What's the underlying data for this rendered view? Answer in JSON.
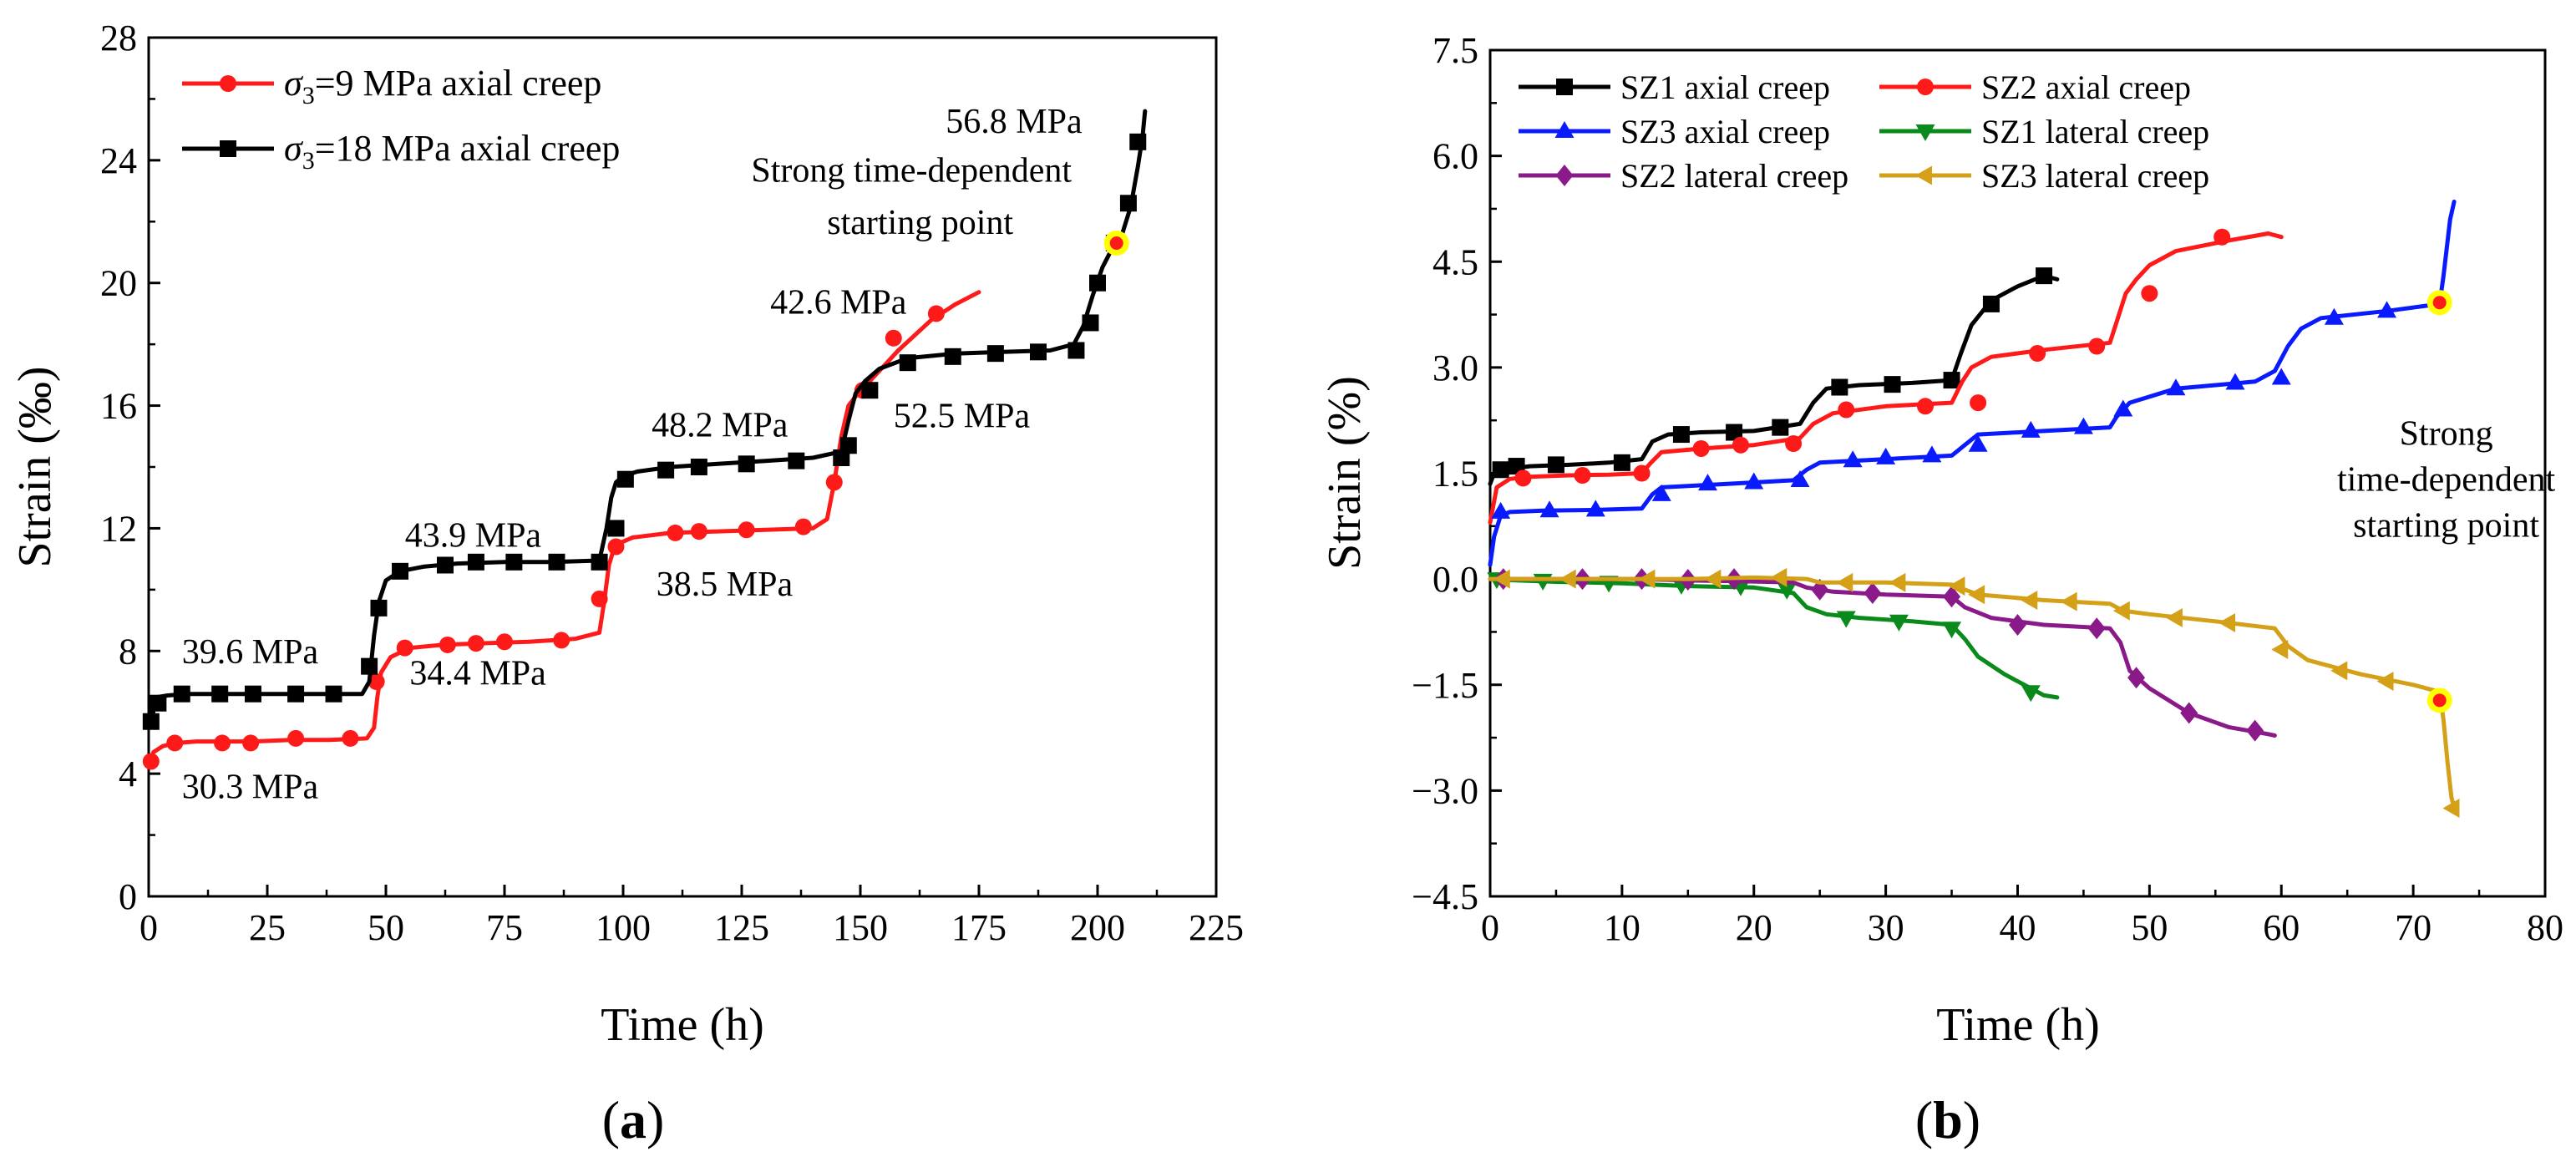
{
  "chart_data": [
    {
      "type": "line",
      "panel_label": "(a)",
      "xlabel": "Time  (h)",
      "ylabel": "Strain (‰)",
      "xlim": [
        0,
        225
      ],
      "ylim": [
        0,
        28
      ],
      "xticks": [
        "0",
        "25",
        "50",
        "75",
        "100",
        "125",
        "150",
        "175",
        "200",
        "225"
      ],
      "yticks": [
        "0",
        "4",
        "8",
        "12",
        "16",
        "20",
        "24",
        "28"
      ],
      "legend": [
        "σ3=9 MPa  axial creep",
        "σ3=18 MPa  axial creep"
      ],
      "series": [
        {
          "name": "σ3=9 MPa  axial creep",
          "color": "#ff1a1a",
          "marker": "circle",
          "x": [
            0,
            1,
            3,
            6,
            10,
            15,
            22,
            30,
            38,
            46,
            47.5,
            48.2,
            49,
            51,
            55,
            62,
            70,
            80,
            90,
            95,
            96,
            97,
            98,
            99,
            102,
            110,
            120,
            130,
            140,
            143,
            144.5,
            146,
            147.5,
            149,
            152,
            158,
            165,
            170,
            175
          ],
          "y": [
            4.3,
            4.7,
            4.9,
            5.0,
            5.05,
            5.05,
            5.05,
            5.1,
            5.1,
            5.15,
            5.5,
            6.5,
            7.3,
            7.8,
            8.1,
            8.2,
            8.25,
            8.3,
            8.4,
            8.6,
            9.6,
            10.8,
            11.3,
            11.5,
            11.7,
            11.85,
            11.9,
            11.95,
            12.0,
            12.3,
            13.5,
            15.0,
            16.0,
            16.3,
            16.8,
            17.8,
            18.8,
            19.3,
            19.7
          ],
          "markers_x": [
            0.5,
            5.5,
            15.5,
            21.5,
            31,
            42.5,
            48,
            54,
            63,
            69,
            75,
            87,
            95,
            98.5,
            111,
            116,
            126,
            138,
            144.5,
            150.5,
            157,
            166
          ],
          "markers_y": [
            4.4,
            5.0,
            5.0,
            5.0,
            5.15,
            5.15,
            7.0,
            8.1,
            8.2,
            8.25,
            8.3,
            8.35,
            9.7,
            11.4,
            11.85,
            11.9,
            11.95,
            12.05,
            13.5,
            16.5,
            18.2,
            19.0
          ]
        },
        {
          "name": "σ3=18 MPa  axial creep",
          "color": "#000000",
          "marker": "square",
          "x": [
            0,
            0.5,
            1,
            2,
            4,
            8,
            15,
            25,
            35,
            45,
            46.5,
            47.5,
            48.5,
            50,
            53,
            58,
            65,
            75,
            85,
            95,
            96.5,
            97.5,
            98.5,
            100,
            103,
            110,
            120,
            130,
            140,
            146,
            147.5,
            149,
            151,
            154,
            160,
            170,
            180,
            190,
            195,
            197,
            199,
            201,
            203,
            205,
            207,
            208.5,
            209.5,
            210
          ],
          "y": [
            5.6,
            6.1,
            6.3,
            6.5,
            6.55,
            6.6,
            6.6,
            6.6,
            6.6,
            6.6,
            7.0,
            8.5,
            9.6,
            10.3,
            10.6,
            10.75,
            10.85,
            10.9,
            10.9,
            10.95,
            12.0,
            13.0,
            13.5,
            13.7,
            13.85,
            14.0,
            14.1,
            14.2,
            14.3,
            14.5,
            15.5,
            16.4,
            16.8,
            17.2,
            17.55,
            17.7,
            17.75,
            17.8,
            18.0,
            18.6,
            19.6,
            20.5,
            21.1,
            21.5,
            22.5,
            23.8,
            24.8,
            25.6
          ],
          "markers_x": [
            0.5,
            2,
            7,
            15,
            22,
            31,
            39,
            46.5,
            48.5,
            53,
            62.5,
            69,
            77,
            86,
            95,
            98.5,
            100.5,
            109,
            116,
            126,
            136.5,
            146,
            147.5,
            152,
            160,
            169.5,
            178.5,
            187.5,
            195.5,
            198.5,
            200,
            203.5,
            206.5,
            208.5
          ],
          "markers_y": [
            5.7,
            6.3,
            6.6,
            6.6,
            6.6,
            6.6,
            6.6,
            7.5,
            9.4,
            10.6,
            10.8,
            10.9,
            10.9,
            10.9,
            10.9,
            12.0,
            13.6,
            13.9,
            14.0,
            14.1,
            14.2,
            14.3,
            14.7,
            16.5,
            17.4,
            17.6,
            17.7,
            17.75,
            17.8,
            18.7,
            20.0,
            21.3,
            22.6,
            24.6
          ]
        }
      ],
      "starting_point": {
        "x": 204,
        "y": 21.3
      },
      "annotations": [
        {
          "text": "30.3 MPa",
          "x": 7,
          "y": 3.2
        },
        {
          "text": "34.4 MPa",
          "x": 55,
          "y": 6.9
        },
        {
          "text": "39.6 MPa",
          "x": 7,
          "y": 7.6
        },
        {
          "text": "43.9 MPa",
          "x": 54,
          "y": 11.4
        },
        {
          "text": "38.5 MPa",
          "x": 107,
          "y": 9.8
        },
        {
          "text": "48.2 MPa",
          "x": 106,
          "y": 15.0
        },
        {
          "text": "52.5 MPa",
          "x": 157,
          "y": 15.3
        },
        {
          "text": "42.6 MPa",
          "x": 131,
          "y": 19.0
        },
        {
          "text": "56.8 MPa",
          "x": 168,
          "y": 24.9
        },
        {
          "text": "Strong time-dependent",
          "x": 127,
          "y": 23.3
        },
        {
          "text": "starting point",
          "x": 143,
          "y": 21.6
        }
      ]
    },
    {
      "type": "line",
      "panel_label": "(b)",
      "xlabel": "Time (h)",
      "ylabel": "Strain (%)",
      "xlim": [
        0,
        80
      ],
      "ylim": [
        -4.5,
        7.5
      ],
      "xticks": [
        "0",
        "10",
        "20",
        "30",
        "40",
        "50",
        "60",
        "70",
        "80"
      ],
      "yticks": [
        "−4.5",
        "−3.0",
        "−1.5",
        "0.0",
        "1.5",
        "3.0",
        "4.5",
        "6.0",
        "7.5"
      ],
      "legend": [
        "SZ1 axial creep",
        "SZ2 axial creep",
        "SZ3 axial creep",
        "SZ1 lateral creep",
        "SZ2 lateral creep",
        "SZ3 lateral creep"
      ],
      "series": [
        {
          "name": "SZ1 axial creep",
          "color": "#000000",
          "marker": "square",
          "x": [
            0,
            0.3,
            1,
            3,
            6,
            9,
            11.5,
            12.3,
            13.5,
            16,
            20,
            23.5,
            24.5,
            25.5,
            28,
            32,
            35,
            35.7,
            36.5,
            38,
            40,
            42,
            43
          ],
          "y": [
            1.35,
            1.5,
            1.55,
            1.6,
            1.62,
            1.65,
            1.7,
            1.95,
            2.05,
            2.08,
            2.1,
            2.2,
            2.5,
            2.7,
            2.75,
            2.78,
            2.82,
            3.2,
            3.6,
            3.95,
            4.15,
            4.3,
            4.25
          ],
          "markers_x": [
            0.8,
            2,
            5,
            10,
            14.5,
            18.5,
            22,
            26.5,
            30.5,
            35,
            38,
            42
          ],
          "markers_y": [
            1.55,
            1.6,
            1.62,
            1.65,
            2.05,
            2.08,
            2.15,
            2.72,
            2.76,
            2.82,
            3.9,
            4.3
          ]
        },
        {
          "name": "SZ2 axial creep",
          "color": "#ff1a1a",
          "marker": "circle",
          "x": [
            0,
            0.5,
            1.5,
            3,
            6,
            9,
            11.5,
            12.2,
            13,
            16,
            20,
            23.5,
            24.5,
            26,
            30,
            35,
            35.8,
            36.5,
            38,
            42,
            47,
            47.6,
            48.2,
            49,
            50,
            52,
            56,
            59,
            60
          ],
          "y": [
            0.8,
            1.3,
            1.42,
            1.45,
            1.47,
            1.48,
            1.5,
            1.65,
            1.8,
            1.85,
            1.9,
            2.0,
            2.2,
            2.35,
            2.45,
            2.5,
            2.8,
            3.0,
            3.15,
            3.25,
            3.35,
            3.7,
            4.05,
            4.25,
            4.45,
            4.65,
            4.8,
            4.9,
            4.85
          ],
          "markers_x": [
            2.5,
            7,
            11.5,
            16,
            19,
            23,
            27,
            33,
            37,
            41.5,
            46,
            50,
            55.5
          ],
          "markers_y": [
            1.43,
            1.47,
            1.5,
            1.85,
            1.9,
            1.92,
            2.4,
            2.45,
            2.5,
            3.2,
            3.3,
            4.05,
            4.85
          ]
        },
        {
          "name": "SZ3 axial creep",
          "color": "#0a1aff",
          "marker": "triangle-up",
          "x": [
            0,
            0.3,
            0.8,
            1.5,
            4,
            8,
            11.5,
            12.3,
            13,
            18,
            23,
            24,
            25,
            30,
            35,
            36,
            37,
            42,
            47,
            47.5,
            48.5,
            52,
            58,
            59.5,
            60.5,
            61.5,
            63,
            68,
            72,
            72.3,
            72.8,
            73.1
          ],
          "y": [
            0.2,
            0.6,
            0.9,
            0.95,
            0.97,
            0.98,
            1.0,
            1.2,
            1.3,
            1.35,
            1.4,
            1.55,
            1.65,
            1.7,
            1.75,
            1.9,
            2.05,
            2.1,
            2.15,
            2.3,
            2.5,
            2.7,
            2.8,
            2.95,
            3.3,
            3.55,
            3.7,
            3.8,
            3.9,
            4.3,
            5.1,
            5.35
          ],
          "markers_x": [
            0.8,
            4.5,
            8,
            13,
            16.5,
            20,
            23.5,
            27.5,
            30,
            33.5,
            37,
            41,
            45,
            48,
            52,
            56.5,
            60,
            64,
            68
          ],
          "markers_y": [
            0.95,
            0.97,
            0.98,
            1.2,
            1.35,
            1.37,
            1.4,
            1.68,
            1.72,
            1.75,
            1.9,
            2.1,
            2.15,
            2.4,
            2.7,
            2.78,
            2.85,
            3.7,
            3.8
          ]
        },
        {
          "name": "SZ1 lateral creep",
          "color": "#0a8a1a",
          "marker": "triangle-down",
          "x": [
            0,
            2,
            5,
            10,
            15,
            20,
            23,
            24,
            25.5,
            28,
            32,
            35,
            36,
            37,
            39,
            41,
            42,
            43
          ],
          "y": [
            0.0,
            -0.02,
            -0.04,
            -0.06,
            -0.1,
            -0.12,
            -0.2,
            -0.4,
            -0.5,
            -0.55,
            -0.6,
            -0.65,
            -0.85,
            -1.1,
            -1.35,
            -1.55,
            -1.65,
            -1.68
          ],
          "markers_x": [
            0.5,
            4,
            9,
            14.5,
            19,
            22.5,
            27,
            31,
            35,
            41
          ],
          "markers_y": [
            0.0,
            -0.02,
            -0.05,
            -0.08,
            -0.1,
            -0.15,
            -0.55,
            -0.6,
            -0.7,
            -1.6
          ]
        },
        {
          "name": "SZ2 lateral creep",
          "color": "#8a1a8a",
          "marker": "diamond",
          "x": [
            0,
            3,
            7,
            11,
            15,
            19,
            23,
            24,
            26,
            30,
            35,
            36,
            38,
            42,
            47,
            47.8,
            48.5,
            50,
            53,
            56,
            59,
            59.5
          ],
          "y": [
            0.0,
            0.0,
            0.0,
            0.0,
            -0.02,
            -0.03,
            -0.05,
            -0.12,
            -0.18,
            -0.22,
            -0.25,
            -0.4,
            -0.55,
            -0.65,
            -0.7,
            -0.9,
            -1.3,
            -1.55,
            -1.9,
            -2.1,
            -2.2,
            -2.22
          ],
          "markers_x": [
            1,
            7,
            11.5,
            15,
            18.5,
            25,
            29,
            35,
            40,
            46,
            49,
            53,
            58
          ],
          "markers_y": [
            0.0,
            0.0,
            0.0,
            -0.01,
            0.0,
            -0.15,
            -0.2,
            -0.25,
            -0.65,
            -0.7,
            -1.4,
            -1.9,
            -2.15
          ]
        },
        {
          "name": "SZ3 lateral creep",
          "color": "#d4a017",
          "marker": "triangle-left",
          "x": [
            0,
            5,
            10,
            15,
            20,
            24,
            25,
            30,
            35,
            36,
            37,
            42,
            47,
            48,
            50,
            55,
            59.5,
            60.5,
            62,
            66,
            70,
            72,
            72.3,
            72.6,
            72.9,
            73.2
          ],
          "y": [
            0.0,
            0.0,
            0.0,
            0.0,
            0.02,
            0.0,
            -0.05,
            -0.05,
            -0.08,
            -0.15,
            -0.22,
            -0.3,
            -0.35,
            -0.45,
            -0.5,
            -0.6,
            -0.7,
            -0.95,
            -1.15,
            -1.35,
            -1.5,
            -1.6,
            -2.0,
            -2.6,
            -3.1,
            -3.3
          ],
          "markers_x": [
            1,
            6,
            12,
            17,
            22,
            27,
            31,
            35.5,
            37,
            41,
            44,
            48,
            52,
            56,
            60,
            64.5,
            68,
            73
          ],
          "markers_y": [
            0.0,
            0.0,
            0.0,
            0.0,
            0.02,
            -0.05,
            -0.05,
            -0.1,
            -0.22,
            -0.3,
            -0.32,
            -0.45,
            -0.55,
            -0.62,
            -1.0,
            -1.3,
            -1.45,
            -3.25
          ]
        }
      ],
      "starting_points": [
        {
          "x": 72,
          "y": 3.92
        },
        {
          "x": 72,
          "y": -1.72
        }
      ],
      "annotations": [
        {
          "text": "Strong",
          "x": 72.5,
          "y": 1.9
        },
        {
          "text": "time-dependent",
          "x": 72.5,
          "y": 1.25
        },
        {
          "text": "starting point",
          "x": 72.5,
          "y": 0.6
        }
      ]
    }
  ]
}
